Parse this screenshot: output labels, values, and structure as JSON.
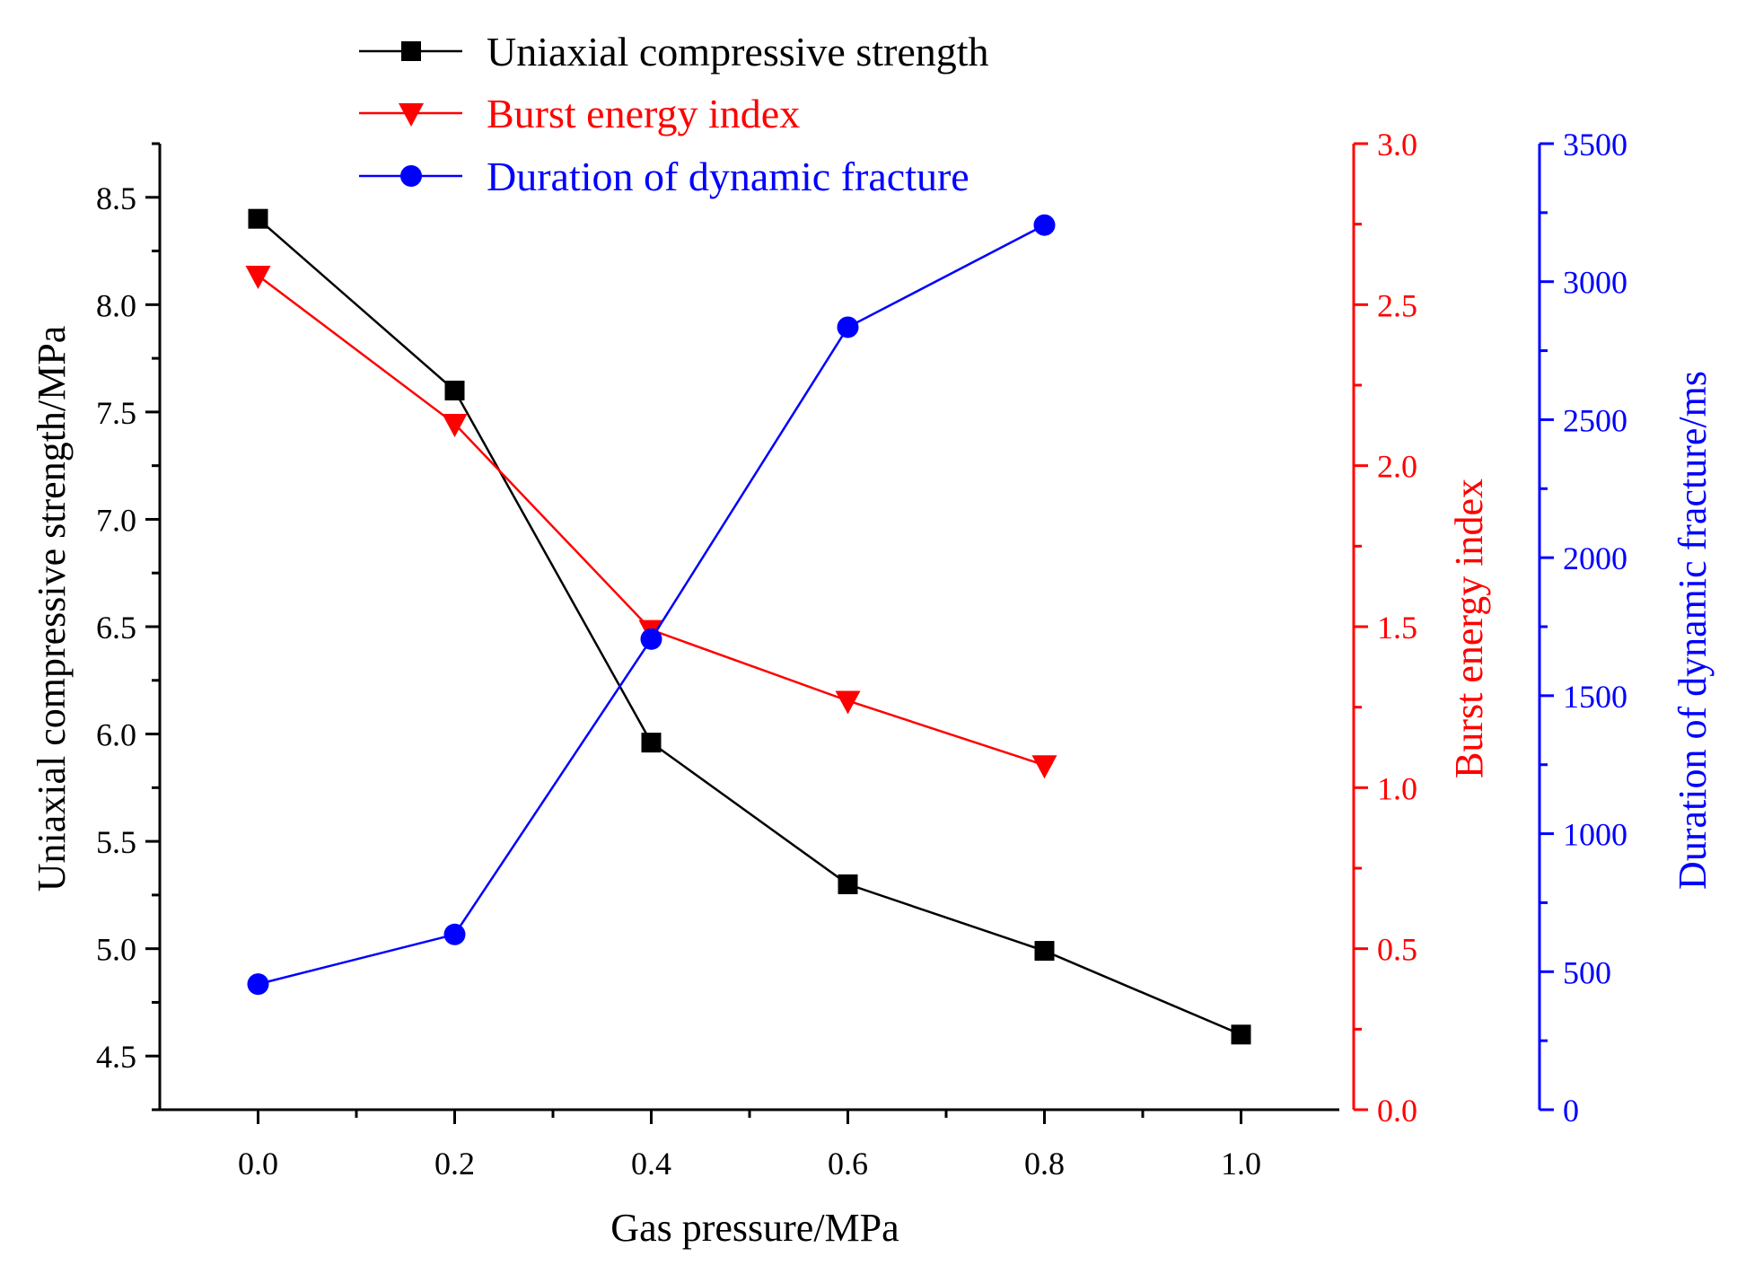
{
  "chart_data": {
    "type": "line",
    "title": "",
    "xlabel": "Gas pressure/MPa",
    "xlim": [
      -0.1,
      1.1
    ],
    "x_ticks": [
      "0.0",
      "0.2",
      "0.4",
      "0.6",
      "0.8",
      "1.0"
    ],
    "y_axes": [
      {
        "id": "left",
        "label": "Uniaxial compressive strength/MPa",
        "color": "#000000",
        "ylim": [
          4.25,
          8.75
        ],
        "ticks": [
          "4.5",
          "5.0",
          "5.5",
          "6.0",
          "6.5",
          "7.0",
          "7.5",
          "8.0",
          "8.5"
        ]
      },
      {
        "id": "right1",
        "label": "Burst energy index",
        "color": "#ff0000",
        "ylim": [
          0.0,
          3.0
        ],
        "ticks": [
          "0.0",
          "0.5",
          "1.0",
          "1.5",
          "2.0",
          "2.5",
          "3.0"
        ]
      },
      {
        "id": "right2",
        "label": "Duration of dynamic fracture/ms",
        "color": "#0000ff",
        "ylim": [
          0,
          3500
        ],
        "ticks": [
          "0",
          "500",
          "1000",
          "1500",
          "2000",
          "2500",
          "3000",
          "3500"
        ]
      }
    ],
    "series": [
      {
        "name": "Uniaxial compressive strength",
        "axis": "left",
        "color": "#000000",
        "marker": "square",
        "x": [
          0.0,
          0.2,
          0.4,
          0.6,
          0.8,
          1.0
        ],
        "values": [
          8.4,
          7.6,
          5.96,
          5.3,
          4.99,
          4.6
        ]
      },
      {
        "name": "Burst energy index",
        "axis": "right1",
        "color": "#ff0000",
        "marker": "triangle-down",
        "x": [
          0.0,
          0.2,
          0.4,
          0.6,
          0.8
        ],
        "values": [
          2.59,
          2.13,
          1.49,
          1.27,
          1.07
        ]
      },
      {
        "name": "Duration of dynamic fracture",
        "axis": "right2",
        "color": "#0000ff",
        "marker": "circle",
        "x": [
          0.0,
          0.2,
          0.4,
          0.6,
          0.8
        ],
        "values": [
          455,
          635,
          1705,
          2835,
          3205
        ]
      }
    ],
    "legend_position": "top-center"
  }
}
